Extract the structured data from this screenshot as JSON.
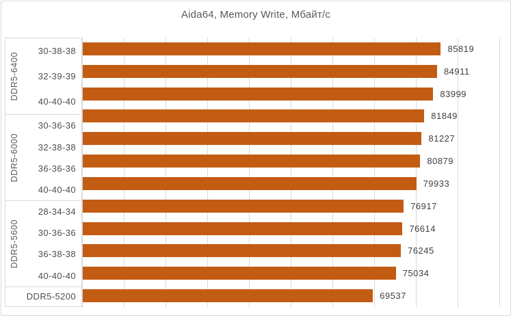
{
  "frame": {
    "background": "#FFFFFF",
    "border_color": "#D9D9D9"
  },
  "chart_data": {
    "type": "bar",
    "orientation": "horizontal",
    "title": "Aida64, Memory Write, Мбайт/с",
    "unit": "Мбайт/с",
    "value_axis": {
      "min": 0,
      "max": 100000,
      "gridline_step": 10000,
      "tick_labels_visible": false
    },
    "grid": true,
    "legend": "none",
    "bar_color": "#C35C13",
    "title_color": "#595959",
    "category_label_color": "#4D4D4D",
    "value_label_color": "#404040",
    "gridline_color": "#D9D9D9",
    "groups": [
      {
        "label": "DDR5-6400",
        "rows": [
          {
            "label": "30-38-38",
            "value": 85819
          },
          {
            "label": "32-39-39",
            "value": 84911
          },
          {
            "label": "40-40-40",
            "value": 83999
          }
        ]
      },
      {
        "label": "DDR5-6000",
        "rows": [
          {
            "label": "30-36-36",
            "value": 81849
          },
          {
            "label": "32-38-38",
            "value": 81227
          },
          {
            "label": "36-36-36",
            "value": 80879
          },
          {
            "label": "40-40-40",
            "value": 79933
          }
        ]
      },
      {
        "label": "DDR5-5600",
        "rows": [
          {
            "label": "28-34-34",
            "value": 76917
          },
          {
            "label": "30-36-36",
            "value": 76614
          },
          {
            "label": "36-38-38",
            "value": 76245
          },
          {
            "label": "40-40-40",
            "value": 75034
          }
        ]
      },
      {
        "label": "",
        "rows": [
          {
            "label": "DDR5-5200",
            "value": 69537
          }
        ]
      }
    ]
  }
}
